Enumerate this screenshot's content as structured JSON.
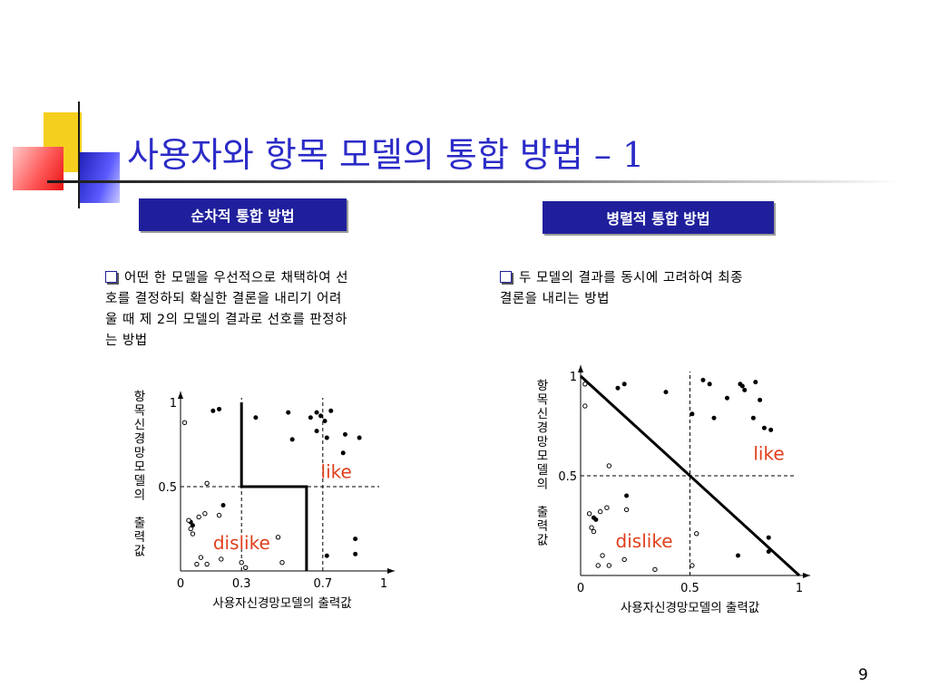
{
  "slide": {
    "title": "사용자와 항목 모델의 통합 방법 – 1",
    "page_number": "9"
  },
  "labels": {
    "sequential": "순차적 통합 방법",
    "parallel": "병렬적 통합 방법"
  },
  "bullets": {
    "sequential_lines": [
      "어떤 한 모델을 우선적으로 채택하여 선",
      "호를 결정하되 확실한 결론을 내리기 어려",
      "울 때 제 2의 모델의 결과로 선호를 판정하",
      "는 방법"
    ],
    "parallel_lines": [
      "두 모델의 결과를 동시에 고려하여 최종",
      "결론을 내리는 방법"
    ]
  },
  "colors": {
    "title": "#2b2bc8",
    "label_bg": "#1f1f9c",
    "annotation": "#e0401c"
  },
  "chart_data": [
    {
      "type": "scatter",
      "title": "",
      "xlabel": "사용자신경망모델의 출력값",
      "ylabel": "항목신경망모델의 출력값",
      "xlim": [
        0,
        1
      ],
      "ylim": [
        0,
        1
      ],
      "xticks": [
        {
          "value": 0,
          "label": "0"
        },
        {
          "value": 0.3,
          "label": "0.3"
        },
        {
          "value": 0.7,
          "label": "0.7"
        },
        {
          "value": 1,
          "label": "1"
        }
      ],
      "yticks": [
        {
          "value": 0.5,
          "label": "0.5"
        },
        {
          "value": 1,
          "label": "1"
        }
      ],
      "reference_lines": {
        "vertical": [
          0.3,
          0.7
        ],
        "horizontal": [
          0.5
        ]
      },
      "decision_boundary": [
        [
          0.3,
          1.0
        ],
        [
          0.3,
          0.5
        ],
        [
          0.62,
          0.5
        ],
        [
          0.62,
          0.0
        ]
      ],
      "annotations": [
        {
          "text": "like",
          "x": 0.69,
          "y": 0.55
        },
        {
          "text": "dislike",
          "x": 0.16,
          "y": 0.13
        }
      ],
      "series": [
        {
          "marker": "filled",
          "points": [
            [
              0.16,
              0.95
            ],
            [
              0.19,
              0.96
            ],
            [
              0.37,
              0.91
            ],
            [
              0.53,
              0.94
            ],
            [
              0.55,
              0.78
            ],
            [
              0.64,
              0.91
            ],
            [
              0.67,
              0.94
            ],
            [
              0.69,
              0.92
            ],
            [
              0.71,
              0.89
            ],
            [
              0.74,
              0.95
            ],
            [
              0.67,
              0.83
            ],
            [
              0.72,
              0.79
            ],
            [
              0.81,
              0.81
            ],
            [
              0.88,
              0.79
            ],
            [
              0.8,
              0.7
            ],
            [
              0.21,
              0.39
            ],
            [
              0.05,
              0.29
            ],
            [
              0.06,
              0.27
            ],
            [
              0.72,
              0.09
            ],
            [
              0.86,
              0.1
            ],
            [
              0.86,
              0.19
            ]
          ]
        },
        {
          "marker": "hollow",
          "points": [
            [
              0.02,
              0.88
            ],
            [
              0.13,
              0.52
            ],
            [
              0.09,
              0.32
            ],
            [
              0.05,
              0.25
            ],
            [
              0.04,
              0.3
            ],
            [
              0.06,
              0.22
            ],
            [
              0.12,
              0.34
            ],
            [
              0.19,
              0.33
            ],
            [
              0.1,
              0.08
            ],
            [
              0.08,
              0.04
            ],
            [
              0.13,
              0.04
            ],
            [
              0.2,
              0.07
            ],
            [
              0.32,
              0.02
            ],
            [
              0.5,
              0.05
            ],
            [
              0.48,
              0.2
            ],
            [
              0.3,
              0.05
            ]
          ]
        }
      ]
    },
    {
      "type": "scatter",
      "title": "",
      "xlabel": "사용자신경망모델의 출력값",
      "ylabel": "항목신경망모델의 출력값",
      "xlim": [
        0,
        1
      ],
      "ylim": [
        0,
        1
      ],
      "xticks": [
        {
          "value": 0,
          "label": "0"
        },
        {
          "value": 0.5,
          "label": "0.5"
        },
        {
          "value": 1,
          "label": "1"
        }
      ],
      "yticks": [
        {
          "value": 0.5,
          "label": "0.5"
        },
        {
          "value": 1,
          "label": "1"
        }
      ],
      "reference_lines": {
        "vertical": [
          0.5
        ],
        "horizontal": [
          0.5
        ]
      },
      "decision_boundary": [
        [
          0.0,
          1.0
        ],
        [
          1.0,
          0.0
        ]
      ],
      "annotations": [
        {
          "text": "like",
          "x": 0.79,
          "y": 0.58
        },
        {
          "text": "dislike",
          "x": 0.16,
          "y": 0.14
        }
      ],
      "series": [
        {
          "marker": "filled",
          "points": [
            [
              0.17,
              0.94
            ],
            [
              0.2,
              0.96
            ],
            [
              0.39,
              0.92
            ],
            [
              0.51,
              0.81
            ],
            [
              0.56,
              0.98
            ],
            [
              0.59,
              0.96
            ],
            [
              0.67,
              0.89
            ],
            [
              0.61,
              0.79
            ],
            [
              0.74,
              0.95
            ],
            [
              0.73,
              0.96
            ],
            [
              0.75,
              0.93
            ],
            [
              0.8,
              0.97
            ],
            [
              0.82,
              0.88
            ],
            [
              0.84,
              0.74
            ],
            [
              0.79,
              0.79
            ],
            [
              0.87,
              0.73
            ],
            [
              0.21,
              0.4
            ],
            [
              0.06,
              0.29
            ],
            [
              0.07,
              0.28
            ],
            [
              0.72,
              0.1
            ],
            [
              0.86,
              0.12
            ],
            [
              0.86,
              0.19
            ]
          ]
        },
        {
          "marker": "hollow",
          "points": [
            [
              0.02,
              0.96
            ],
            [
              0.02,
              0.85
            ],
            [
              0.13,
              0.55
            ],
            [
              0.09,
              0.32
            ],
            [
              0.05,
              0.24
            ],
            [
              0.04,
              0.31
            ],
            [
              0.06,
              0.22
            ],
            [
              0.12,
              0.34
            ],
            [
              0.21,
              0.33
            ],
            [
              0.1,
              0.1
            ],
            [
              0.08,
              0.05
            ],
            [
              0.13,
              0.05
            ],
            [
              0.2,
              0.08
            ],
            [
              0.34,
              0.03
            ],
            [
              0.51,
              0.05
            ],
            [
              0.53,
              0.21
            ]
          ]
        }
      ]
    }
  ]
}
